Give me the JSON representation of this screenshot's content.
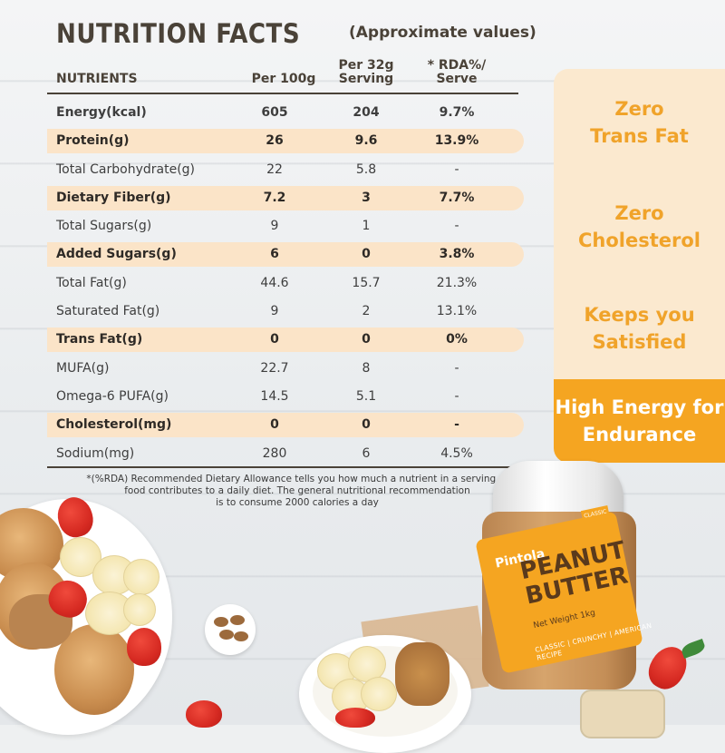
{
  "header": {
    "title": "NUTRITION FACTS",
    "subtitle": "(Approximate values)"
  },
  "table": {
    "columns": {
      "nutrients": "NUTRIENTS",
      "per100": "Per 100g",
      "serving_line1": "Per 32g",
      "serving_line2": "Serving",
      "rda_line1": "* RDA%/",
      "rda_line2": "Serve"
    },
    "rows": [
      {
        "name": "Energy(kcal)",
        "per100": "605",
        "serving": "204",
        "rda": "9.7%"
      },
      {
        "name": "Protein(g)",
        "per100": "26",
        "serving": "9.6",
        "rda": "13.9%"
      },
      {
        "name": "Total Carbohydrate(g)",
        "per100": "22",
        "serving": "5.8",
        "rda": "-"
      },
      {
        "name": "Dietary Fiber(g)",
        "per100": "7.2",
        "serving": "3",
        "rda": "7.7%"
      },
      {
        "name": "Total Sugars(g)",
        "per100": "9",
        "serving": "1",
        "rda": "-"
      },
      {
        "name": "Added Sugars(g)",
        "per100": "6",
        "serving": "0",
        "rda": "3.8%"
      },
      {
        "name": "Total Fat(g)",
        "per100": "44.6",
        "serving": "15.7",
        "rda": "21.3%"
      },
      {
        "name": "Saturated Fat(g)",
        "per100": "9",
        "serving": "2",
        "rda": "13.1%"
      },
      {
        "name": "Trans Fat(g)",
        "per100": "0",
        "serving": "0",
        "rda": "0%"
      },
      {
        "name": "MUFA(g)",
        "per100": "22.7",
        "serving": "8",
        "rda": "-"
      },
      {
        "name": "Omega-6 PUFA(g)",
        "per100": "14.5",
        "serving": "5.1",
        "rda": "-"
      },
      {
        "name": "Cholesterol(mg)",
        "per100": "0",
        "serving": "0",
        "rda": "-"
      },
      {
        "name": "Sodium(mg)",
        "per100": "280",
        "serving": "6",
        "rda": "4.5%"
      }
    ],
    "footnote_line1": "*(%RDA) Recommended Dietary Allowance tells you how much a nutrient in a serving of",
    "footnote_line2": "food contributes to a daily diet. The general nutritional recommendation",
    "footnote_line3": "is to consume 2000 calories a day"
  },
  "features": [
    {
      "line1": "Zero",
      "line2": "Trans Fat"
    },
    {
      "line1": "Zero",
      "line2": "Cholesterol"
    },
    {
      "line1": "Keeps you",
      "line2": "Satisfied"
    },
    {
      "line1": "High Energy for",
      "line2": "Endurance"
    }
  ],
  "jar": {
    "brand": "Pintola",
    "product_line1": "PEANUT",
    "product_line2": "BUTTER",
    "weight": "Net Weight 1kg",
    "variants": "CLASSIC | CRUNCHY | AMERICAN RECIPE",
    "tag": "CLASSIC"
  },
  "colors": {
    "accent": "#f5a521",
    "highlight_band": "#fbe4c8",
    "panel_bg": "#fbe9cf",
    "text_dark": "#4a4238"
  }
}
